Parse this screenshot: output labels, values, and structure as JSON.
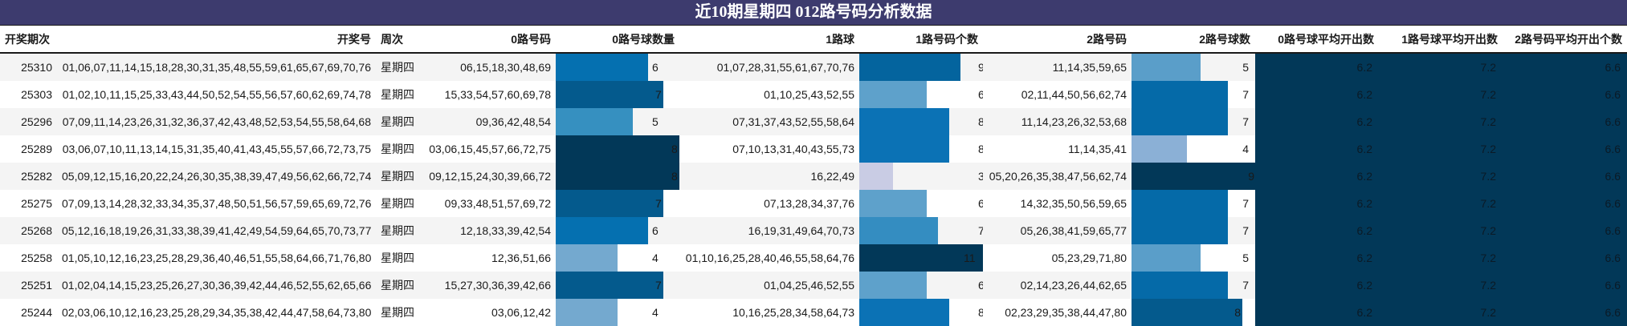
{
  "title": "近10期星期四 012路号码分析数据",
  "headers": [
    "开奖期次",
    "开奖号",
    "周次",
    "0路号码",
    "0路号球数量",
    "1路球",
    "1路号码个数",
    "2路号码",
    "2路号球数",
    "0路号球平均开出数",
    "1路号球平均开出数",
    "2路号码平均开出个数"
  ],
  "colors": {
    "title_bg": "#3d3b6e",
    "avg_bg": "#023858",
    "row_alt": "#f4f4f4",
    "bar_scale": {
      "3": "#c9cce4",
      "4": "#74a9cf",
      "5": "#5a9ec9",
      "6": "#0570b0",
      "7": "#045a8d",
      "8": "#0b6fb0",
      "9": "#023858",
      "11": "#023858"
    }
  },
  "rows": [
    {
      "issue": "25310",
      "numbers": "01,06,07,11,14,15,18,28,30,31,35,48,55,59,61,65,67,69,70,76",
      "weekday": "星期四",
      "r0": "06,15,18,30,48,69",
      "r0_count": 6,
      "r1": "01,07,28,31,55,61,67,70,76",
      "r1_count": 9,
      "r2": "11,14,35,59,65",
      "r2_count": 5,
      "avg0": "6.2",
      "avg1": "7.2",
      "avg2": "6.6"
    },
    {
      "issue": "25303",
      "numbers": "01,02,10,11,15,25,33,43,44,50,52,54,55,56,57,60,62,69,74,78",
      "weekday": "星期四",
      "r0": "15,33,54,57,60,69,78",
      "r0_count": 7,
      "r1": "01,10,25,43,52,55",
      "r1_count": 6,
      "r2": "02,11,44,50,56,62,74",
      "r2_count": 7,
      "avg0": "6.2",
      "avg1": "7.2",
      "avg2": "6.6"
    },
    {
      "issue": "25296",
      "numbers": "07,09,11,14,23,26,31,32,36,37,42,43,48,52,53,54,55,58,64,68",
      "weekday": "星期四",
      "r0": "09,36,42,48,54",
      "r0_count": 5,
      "r1": "07,31,37,43,52,55,58,64",
      "r1_count": 8,
      "r2": "11,14,23,26,32,53,68",
      "r2_count": 7,
      "avg0": "6.2",
      "avg1": "7.2",
      "avg2": "6.6"
    },
    {
      "issue": "25289",
      "numbers": "03,06,07,10,11,13,14,15,31,35,40,41,43,45,55,57,66,72,73,75",
      "weekday": "星期四",
      "r0": "03,06,15,45,57,66,72,75",
      "r0_count": 8,
      "r1": "07,10,13,31,40,43,55,73",
      "r1_count": 8,
      "r2": "11,14,35,41",
      "r2_count": 4,
      "avg0": "6.2",
      "avg1": "7.2",
      "avg2": "6.6"
    },
    {
      "issue": "25282",
      "numbers": "05,09,12,15,16,20,22,24,26,30,35,38,39,47,49,56,62,66,72,74",
      "weekday": "星期四",
      "r0": "09,12,15,24,30,39,66,72",
      "r0_count": 8,
      "r1": "16,22,49",
      "r1_count": 3,
      "r2": "05,20,26,35,38,47,56,62,74",
      "r2_count": 9,
      "avg0": "6.2",
      "avg1": "7.2",
      "avg2": "6.6"
    },
    {
      "issue": "25275",
      "numbers": "07,09,13,14,28,32,33,34,35,37,48,50,51,56,57,59,65,69,72,76",
      "weekday": "星期四",
      "r0": "09,33,48,51,57,69,72",
      "r0_count": 7,
      "r1": "07,13,28,34,37,76",
      "r1_count": 6,
      "r2": "14,32,35,50,56,59,65",
      "r2_count": 7,
      "avg0": "6.2",
      "avg1": "7.2",
      "avg2": "6.6"
    },
    {
      "issue": "25268",
      "numbers": "05,12,16,18,19,26,31,33,38,39,41,42,49,54,59,64,65,70,73,77",
      "weekday": "星期四",
      "r0": "12,18,33,39,42,54",
      "r0_count": 6,
      "r1": "16,19,31,49,64,70,73",
      "r1_count": 7,
      "r2": "05,26,38,41,59,65,77",
      "r2_count": 7,
      "avg0": "6.2",
      "avg1": "7.2",
      "avg2": "6.6"
    },
    {
      "issue": "25258",
      "numbers": "01,05,10,12,16,23,25,28,29,36,40,46,51,55,58,64,66,71,76,80",
      "weekday": "星期四",
      "r0": "12,36,51,66",
      "r0_count": 4,
      "r1": "01,10,16,25,28,40,46,55,58,64,76",
      "r1_count": 11,
      "r2": "05,23,29,71,80",
      "r2_count": 5,
      "avg0": "6.2",
      "avg1": "7.2",
      "avg2": "6.6"
    },
    {
      "issue": "25251",
      "numbers": "01,02,04,14,15,23,25,26,27,30,36,39,42,44,46,52,55,62,65,66",
      "weekday": "星期四",
      "r0": "15,27,30,36,39,42,66",
      "r0_count": 7,
      "r1": "01,04,25,46,52,55",
      "r1_count": 6,
      "r2": "02,14,23,26,44,62,65",
      "r2_count": 7,
      "avg0": "6.2",
      "avg1": "7.2",
      "avg2": "6.6"
    },
    {
      "issue": "25244",
      "numbers": "02,03,06,10,12,16,23,25,28,29,34,35,38,42,44,47,58,64,73,80",
      "weekday": "星期四",
      "r0": "03,06,12,42",
      "r0_count": 4,
      "r1": "10,16,25,28,34,58,64,73",
      "r1_count": 8,
      "r2": "02,23,29,35,38,44,47,80",
      "r2_count": 8,
      "avg0": "6.2",
      "avg1": "7.2",
      "avg2": "6.6"
    }
  ]
}
